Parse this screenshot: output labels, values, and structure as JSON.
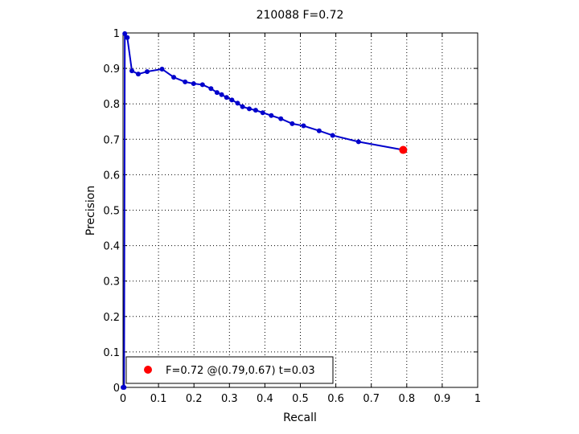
{
  "chart_data": {
    "type": "line",
    "title": "210088 F=0.72",
    "xlabel": "Recall",
    "ylabel": "Precision",
    "xlim": [
      0,
      1
    ],
    "ylim": [
      0,
      1
    ],
    "grid": true,
    "x_ticks": [
      "0",
      "0.1",
      "0.2",
      "0.3",
      "0.4",
      "0.5",
      "0.6",
      "0.7",
      "0.8",
      "0.9",
      "1"
    ],
    "y_ticks": [
      "0",
      "0.1",
      "0.2",
      "0.3",
      "0.4",
      "0.5",
      "0.6",
      "0.7",
      "0.8",
      "0.9",
      "1"
    ],
    "series": [
      {
        "color": "#0000cc",
        "x": [
          0.0,
          0.003,
          0.005,
          0.012,
          0.025,
          0.043,
          0.068,
          0.11,
          0.143,
          0.175,
          0.199,
          0.224,
          0.248,
          0.265,
          0.278,
          0.292,
          0.307,
          0.323,
          0.337,
          0.356,
          0.374,
          0.394,
          0.418,
          0.445,
          0.477,
          0.509,
          0.553,
          0.591,
          0.664,
          0.79
        ],
        "y": [
          0.0,
          0.0,
          0.998,
          0.987,
          0.893,
          0.884,
          0.891,
          0.898,
          0.875,
          0.862,
          0.857,
          0.854,
          0.843,
          0.832,
          0.826,
          0.818,
          0.811,
          0.802,
          0.792,
          0.786,
          0.782,
          0.775,
          0.767,
          0.758,
          0.744,
          0.738,
          0.724,
          0.711,
          0.693,
          0.67
        ]
      }
    ],
    "highlight": {
      "x": 0.79,
      "y": 0.67,
      "color": "#ff0000"
    },
    "legend": {
      "position": "bottom-left",
      "entries": [
        "F=0.72 @(0.79,0.67) t=0.03"
      ]
    }
  }
}
